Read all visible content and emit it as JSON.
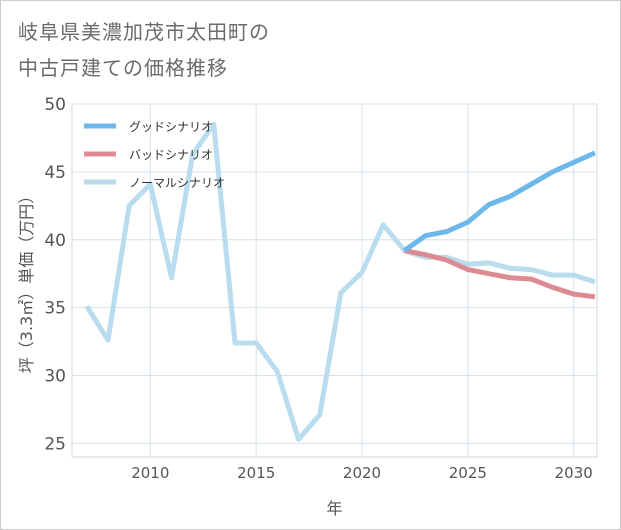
{
  "chart_data": {
    "type": "line",
    "title": [
      "岐阜県美濃加茂市太田町の",
      "中古戸建ての価格推移"
    ],
    "xlabel": "年",
    "ylabel": "坪（3.3㎡）単価（万円）",
    "xlim": [
      2006.3,
      2031.1
    ],
    "ylim": [
      24,
      50
    ],
    "xticks": [
      2010,
      2015,
      2020,
      2025,
      2030
    ],
    "yticks": [
      25,
      30,
      35,
      40,
      45,
      50
    ],
    "grid": true,
    "legend_position": "top-left",
    "series": [
      {
        "name": "グッドシナリオ",
        "color": "#6cb8ea",
        "x": [
          2022,
          2023,
          2024,
          2025,
          2026,
          2027,
          2028,
          2029,
          2030,
          2031
        ],
        "y": [
          39.2,
          40.3,
          40.6,
          41.3,
          42.6,
          43.2,
          44.1,
          45.0,
          45.7,
          46.4
        ]
      },
      {
        "name": "バッドシナリオ",
        "color": "#dc8b92",
        "x": [
          2022,
          2023,
          2024,
          2025,
          2026,
          2027,
          2028,
          2029,
          2030,
          2031
        ],
        "y": [
          39.2,
          38.9,
          38.5,
          37.8,
          37.5,
          37.2,
          37.1,
          36.5,
          36.0,
          35.8
        ]
      },
      {
        "name": "ノーマルシナリオ",
        "color": "#b9dcee",
        "x": [
          2007,
          2008,
          2009,
          2010,
          2011,
          2012,
          2013,
          2014,
          2015,
          2016,
          2017,
          2018,
          2019,
          2020,
          2021,
          2022,
          2023,
          2024,
          2025,
          2026,
          2027,
          2028,
          2029,
          2030,
          2031
        ],
        "y": [
          35.1,
          32.6,
          42.5,
          44.1,
          37.2,
          46.3,
          48.5,
          32.4,
          32.4,
          30.3,
          25.3,
          27.1,
          36.1,
          37.6,
          41.1,
          39.2,
          38.7,
          38.7,
          38.2,
          38.3,
          37.9,
          37.8,
          37.4,
          37.4,
          36.9
        ]
      }
    ]
  }
}
